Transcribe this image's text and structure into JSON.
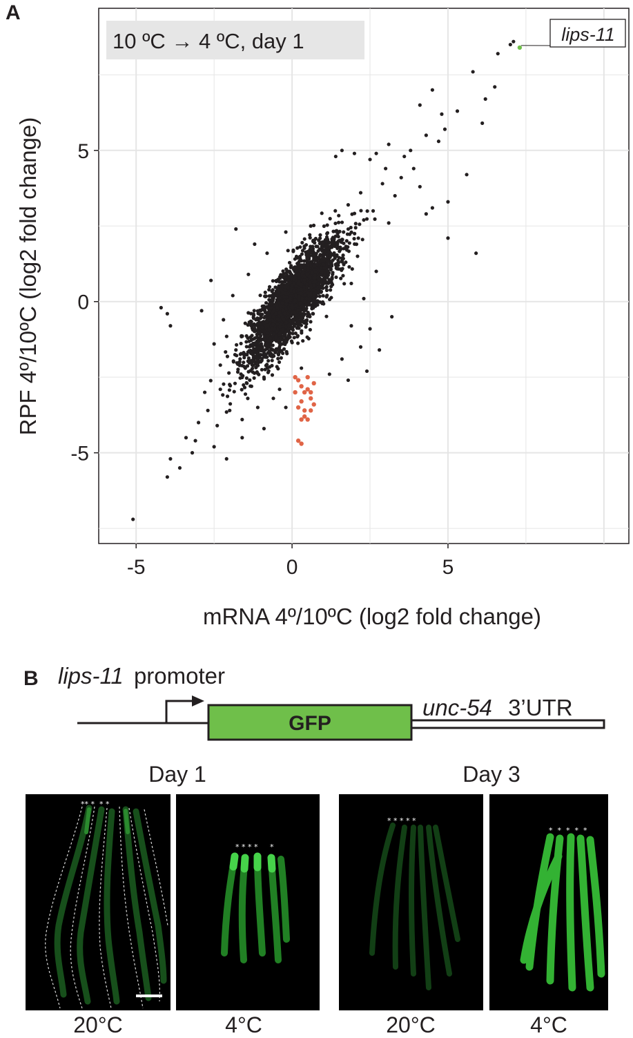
{
  "panels": {
    "a": {
      "letter": "A"
    },
    "b": {
      "letter": "B"
    }
  },
  "chart_data": {
    "type": "scatter",
    "condition_label": "10 ºC → 4 ºC, day 1",
    "xlabel": "mRNA 4º/10ºC (log2 fold change)",
    "ylabel": "RPF 4º/10ºC (log2 fold change)",
    "xlim": [
      -6.2,
      10.8
    ],
    "ylim": [
      -8.0,
      9.7
    ],
    "xticks": [
      -5,
      0,
      5
    ],
    "yticks": [
      -5,
      0,
      5
    ],
    "xtick_labels": [
      "-5",
      "0",
      "5"
    ],
    "ytick_labels": [
      "-5",
      "0",
      "5"
    ],
    "grid": true,
    "highlight_label": "lips-11",
    "colors": {
      "default": "#231f20",
      "highlight": "#6fbf4a",
      "down": "#e06446",
      "panel_bg": "#ffffff",
      "grid": "#e5e5e5",
      "label_bg": "#e6e6e6"
    },
    "series": [
      {
        "color": "default",
        "points": [
          [
            7.0,
            8.5
          ],
          [
            7.1,
            8.6
          ],
          [
            6.6,
            8.2
          ],
          [
            5.8,
            7.6
          ],
          [
            4.5,
            7.0
          ],
          [
            4.1,
            6.5
          ],
          [
            4.8,
            6.2
          ],
          [
            5.3,
            6.3
          ],
          [
            6.2,
            6.7
          ],
          [
            6.5,
            7.1
          ],
          [
            6.1,
            5.9
          ],
          [
            5.6,
            4.2
          ],
          [
            4.9,
            5.7
          ],
          [
            4.7,
            5.3
          ],
          [
            4.3,
            5.5
          ],
          [
            3.8,
            5.0
          ],
          [
            3.6,
            4.8
          ],
          [
            3.1,
            5.2
          ],
          [
            2.7,
            4.9
          ],
          [
            2.5,
            4.7
          ],
          [
            4.5,
            3.1
          ],
          [
            5.0,
            2.1
          ],
          [
            4.3,
            2.9
          ],
          [
            5.0,
            3.3
          ],
          [
            5.9,
            1.6
          ],
          [
            -4.2,
            -0.2
          ],
          [
            -4.0,
            -0.4
          ],
          [
            -3.9,
            -0.8
          ],
          [
            -2.9,
            -0.3
          ],
          [
            -5.1,
            -7.2
          ],
          [
            -4.0,
            -5.8
          ],
          [
            -3.9,
            -5.2
          ],
          [
            -3.6,
            -5.5
          ],
          [
            -3.2,
            -5.0
          ],
          [
            -2.1,
            -5.2
          ],
          [
            -3.0,
            -4.0
          ],
          [
            -2.7,
            -3.6
          ],
          [
            -2.4,
            -4.1
          ],
          [
            2.4,
            -2.3
          ],
          [
            2.8,
            -1.6
          ],
          [
            2.5,
            -0.9
          ],
          [
            3.2,
            -0.5
          ],
          [
            2.7,
            1.0
          ],
          [
            2.1,
            1.5
          ],
          [
            -2.6,
            0.7
          ],
          [
            -1.8,
            2.4
          ],
          [
            -1.2,
            1.9
          ],
          [
            1.4,
            4.8
          ],
          [
            2.0,
            4.9
          ],
          [
            1.6,
            5.0
          ],
          [
            3.0,
            4.4
          ],
          [
            3.5,
            4.1
          ],
          [
            3.9,
            4.4
          ],
          [
            4.1,
            3.8
          ],
          [
            3.3,
            3.5
          ],
          [
            2.9,
            3.9
          ],
          [
            2.2,
            3.6
          ],
          [
            1.8,
            3.2
          ],
          [
            2.6,
            3.0
          ],
          [
            2.3,
            2.7
          ],
          [
            3.1,
            2.6
          ],
          [
            -2.0,
            -3.6
          ],
          [
            -1.6,
            -3.9
          ],
          [
            -1.1,
            -3.5
          ],
          [
            -0.6,
            -3.2
          ],
          [
            -1.3,
            -2.8
          ],
          [
            -2.3,
            -2.9
          ],
          [
            -2.8,
            -3.0
          ],
          [
            -3.4,
            -4.5
          ],
          [
            -3.1,
            -4.6
          ],
          [
            -2.5,
            -4.8
          ],
          [
            -1.6,
            -4.5
          ],
          [
            -0.9,
            -4.2
          ],
          [
            -0.2,
            -3.5
          ],
          [
            -0.4,
            -2.9
          ],
          [
            0.3,
            -2.2
          ],
          [
            1.2,
            -2.4
          ],
          [
            1.8,
            -2.6
          ],
          [
            1.6,
            -1.9
          ],
          [
            2.2,
            -1.5
          ],
          [
            1.9,
            -0.8
          ],
          [
            2.3,
            0.1
          ],
          [
            1.9,
            0.6
          ],
          [
            1.5,
            1.3
          ],
          [
            1.0,
            1.9
          ],
          [
            0.6,
            2.5
          ],
          [
            -0.2,
            2.3
          ],
          [
            -0.8,
            1.6
          ],
          [
            -1.4,
            0.9
          ],
          [
            -1.9,
            0.2
          ],
          [
            -2.2,
            -0.6
          ],
          [
            -2.5,
            -1.4
          ],
          [
            -2.3,
            -2.1
          ],
          [
            -1.8,
            -1.6
          ],
          [
            -1.5,
            -2.2
          ],
          [
            -0.9,
            -2.5
          ]
        ]
      },
      {
        "color": "highlight",
        "points": [
          [
            7.3,
            8.4
          ]
        ]
      },
      {
        "color": "down",
        "points": [
          [
            0.1,
            -2.5
          ],
          [
            0.2,
            -2.6
          ],
          [
            0.3,
            -2.8
          ],
          [
            0.4,
            -3.0
          ],
          [
            0.5,
            -2.9
          ],
          [
            0.6,
            -3.2
          ],
          [
            0.7,
            -3.4
          ],
          [
            0.3,
            -3.3
          ],
          [
            0.1,
            -3.0
          ],
          [
            0.2,
            -3.5
          ],
          [
            0.4,
            -3.6
          ],
          [
            0.6,
            -3.6
          ],
          [
            0.5,
            -3.9
          ],
          [
            0.4,
            -3.8
          ],
          [
            0.3,
            -3.9
          ],
          [
            0.2,
            -4.6
          ],
          [
            0.3,
            -4.7
          ],
          [
            0.5,
            -2.5
          ],
          [
            0.7,
            -2.7
          ],
          [
            0.6,
            -3.0
          ]
        ]
      }
    ]
  },
  "construct": {
    "promoter_gene": "lips-11",
    "promoter_suffix": "promoter",
    "box_label": "GFP",
    "utr_gene": "unc-54",
    "utr_suffix": "3’UTR",
    "colors": {
      "gfp": "#6fbf4a",
      "line": "#231f20"
    }
  },
  "micrographs": {
    "day1_label": "Day 1",
    "day3_label": "Day 3",
    "images": [
      {
        "temp": "20°C",
        "star_text": "** *  * *"
      },
      {
        "temp": "4°C",
        "star_text": "* * * *     *"
      },
      {
        "temp": "20°C",
        "star_text": "* * * * *"
      },
      {
        "temp": "4°C",
        "star_text": "*  *  *  *  *"
      }
    ],
    "colors": {
      "bg": "#000000",
      "gfp_dim": "#1f6a24",
      "gfp_bright": "#3cd23c",
      "outline": "#dcdcdc"
    }
  }
}
